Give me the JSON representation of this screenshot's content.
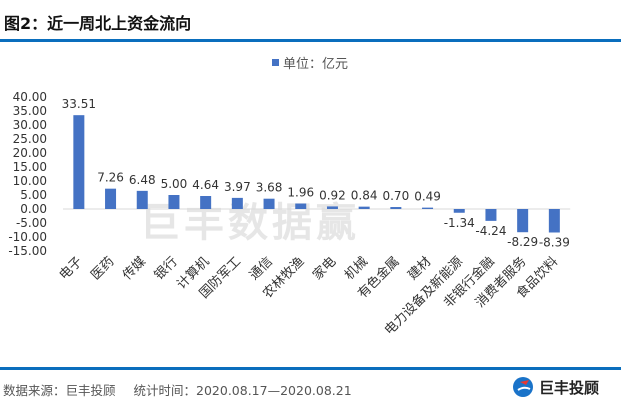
{
  "title": "图2：近一周北上资金流向",
  "watermark": "巨丰数据赢",
  "footer": {
    "source": "数据来源：巨丰投顾",
    "period": "统计时间：2020.08.17—2020.08.21"
  },
  "logo": {
    "text": "巨丰投顾"
  },
  "colors": {
    "bar": "#4472c4",
    "rule": "#0a6ebd"
  },
  "chart_data": {
    "type": "bar",
    "legend": "单位：亿元",
    "legend_position": "top",
    "categories": [
      "电子",
      "医药",
      "传媒",
      "银行",
      "计算机",
      "国防军工",
      "通信",
      "农林牧渔",
      "家电",
      "机械",
      "有色金属",
      "建材",
      "电力设备及新能源",
      "非银行金融",
      "消费者服务",
      "食品饮料"
    ],
    "values": [
      33.51,
      7.26,
      6.48,
      5.0,
      4.64,
      3.97,
      3.68,
      1.96,
      0.92,
      0.84,
      0.7,
      0.49,
      -1.34,
      -4.24,
      -8.29,
      -8.39
    ],
    "data_labels": [
      "33.51",
      "7.26",
      "6.48",
      "5.00",
      "4.64",
      "3.97",
      "3.68",
      "1.96",
      "0.92",
      "0.84",
      "0.70",
      "0.49",
      "-1.34",
      "-4.24",
      "-8.29",
      "-8.39"
    ],
    "yticks": [
      "40.00",
      "35.00",
      "30.00",
      "25.00",
      "20.00",
      "15.00",
      "10.00",
      "5.00",
      "0.00",
      "-5.00",
      "-10.00",
      "-15.00"
    ],
    "ylim": [
      -15,
      40
    ],
    "grid": false
  }
}
